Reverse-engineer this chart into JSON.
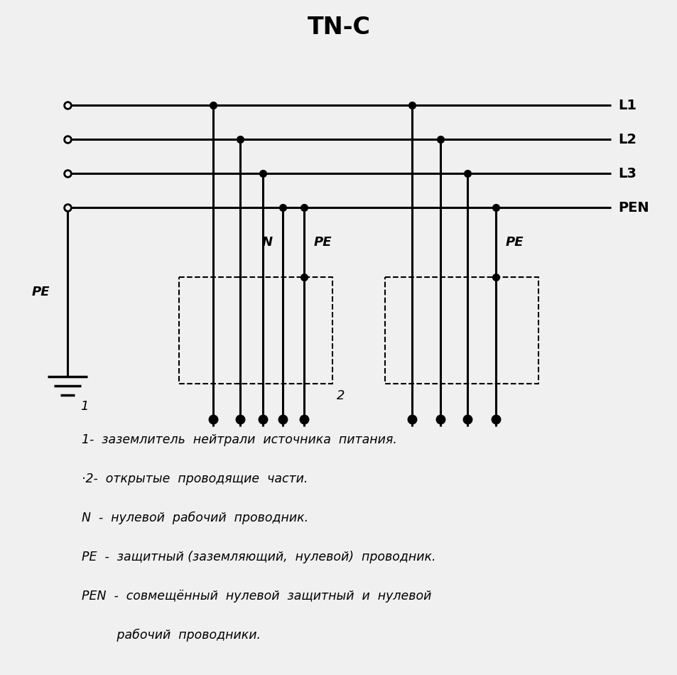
{
  "title": "TN-C",
  "bg_color": "#f0f0f0",
  "line_color": "#000000",
  "line_width": 2.2,
  "dot_size": 7,
  "bus_labels": [
    "L1",
    "L2",
    "L3",
    "PEN"
  ],
  "legend_texts": [
    "1-  заземлитель  нейтрали  источника  питания.",
    "·2-  открытые  проводящие  части.",
    "N  -  нулевой  рабочий  проводник.",
    "PE  -  защитный (заземляющий,  нулевой)  проводник.",
    "PEN  -  совмещённый  нулевой  защитный  и  нулевой",
    "         рабочий  проводники."
  ]
}
